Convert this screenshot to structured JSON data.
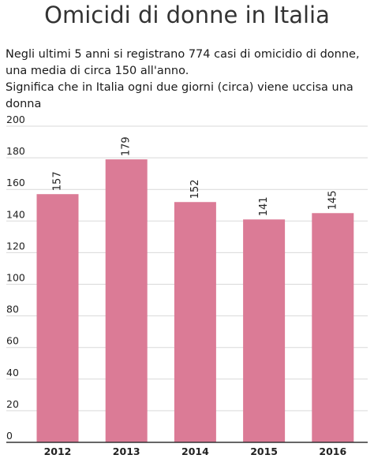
{
  "chart_data": {
    "type": "bar",
    "title": "Omicidi di donne in Italia",
    "subtitle_lines": [
      "Negli ultimi 5 anni si registrano 774 casi di omicidio di donne, una media di circa 150 all'anno.",
      "Significa che in Italia ogni due giorni (circa) viene uccisa una donna"
    ],
    "categories": [
      "2012",
      "2013",
      "2014",
      "2015",
      "2016"
    ],
    "values": [
      157,
      179,
      152,
      141,
      145
    ],
    "data_labels": [
      "157",
      "179",
      "152",
      "141",
      "145"
    ],
    "y_ticks": [
      "0",
      "20",
      "40",
      "60",
      "80",
      "100",
      "120",
      "140",
      "160",
      "180",
      "200"
    ],
    "ylim": [
      0,
      200
    ],
    "xlabel": "",
    "ylabel": "",
    "grid": true,
    "legend": "none",
    "bar_color": "#db7b96",
    "grid_color": "#d9d9d9",
    "axis_color": "#333333"
  }
}
